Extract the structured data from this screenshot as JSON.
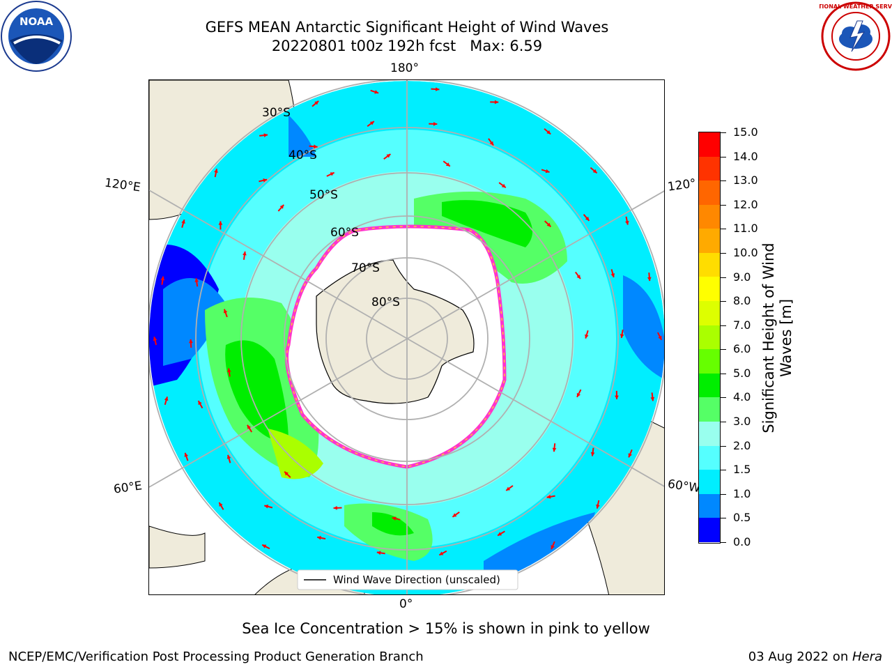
{
  "title_line1": "GEFS MEAN Antarctic Significant Height of Wind Waves",
  "title_line2": "20220801 t00z 192h fcst   Max: 6.59",
  "logo_left": {
    "text": "NOAA",
    "icon": "noaa-logo"
  },
  "logo_right": {
    "text": "NATIONAL WEATHER SERVICE",
    "icon": "nws-logo"
  },
  "map": {
    "projection": "south-polar-stereographic",
    "longitude_labels": [
      "180°",
      "120°E",
      "120°",
      "60°E",
      "60°W",
      "0°"
    ],
    "latitude_labels": [
      "30°S",
      "40°S",
      "50°S",
      "60°S",
      "70°S",
      "80°S"
    ],
    "legend_label": "Wind Wave Direction (unscaled)",
    "arrow_color": "#ff0000",
    "land_color": "#efebdb",
    "ice_edge_colors": [
      "#ff33cc",
      "#ffcc33"
    ]
  },
  "colorbar": {
    "title_line1": "Significant Height of Wind",
    "title_line2": "Waves [m]",
    "ticks": [
      "15.0",
      "14.0",
      "13.0",
      "12.0",
      "11.0",
      "10.0",
      "9.0",
      "8.0",
      "7.0",
      "6.0",
      "5.0",
      "4.0",
      "3.0",
      "2.0",
      "1.5",
      "1.0",
      "0.5",
      "0.0"
    ],
    "colors": [
      "#ff0000",
      "#ff3300",
      "#ff6600",
      "#ff8800",
      "#ffaa00",
      "#ffdd00",
      "#ffff00",
      "#ddff00",
      "#aaff00",
      "#66ff00",
      "#00ee00",
      "#55ff66",
      "#99ffee",
      "#55ffff",
      "#00eeff",
      "#0088ff",
      "#0000ff"
    ]
  },
  "footnote": "Sea Ice Concentration > 15% is shown in pink to yellow",
  "footer_left": "NCEP/EMC/Verification Post Processing Product Generation Branch",
  "footer_right_date": "03 Aug 2022 on ",
  "footer_right_machine": "Hera"
}
